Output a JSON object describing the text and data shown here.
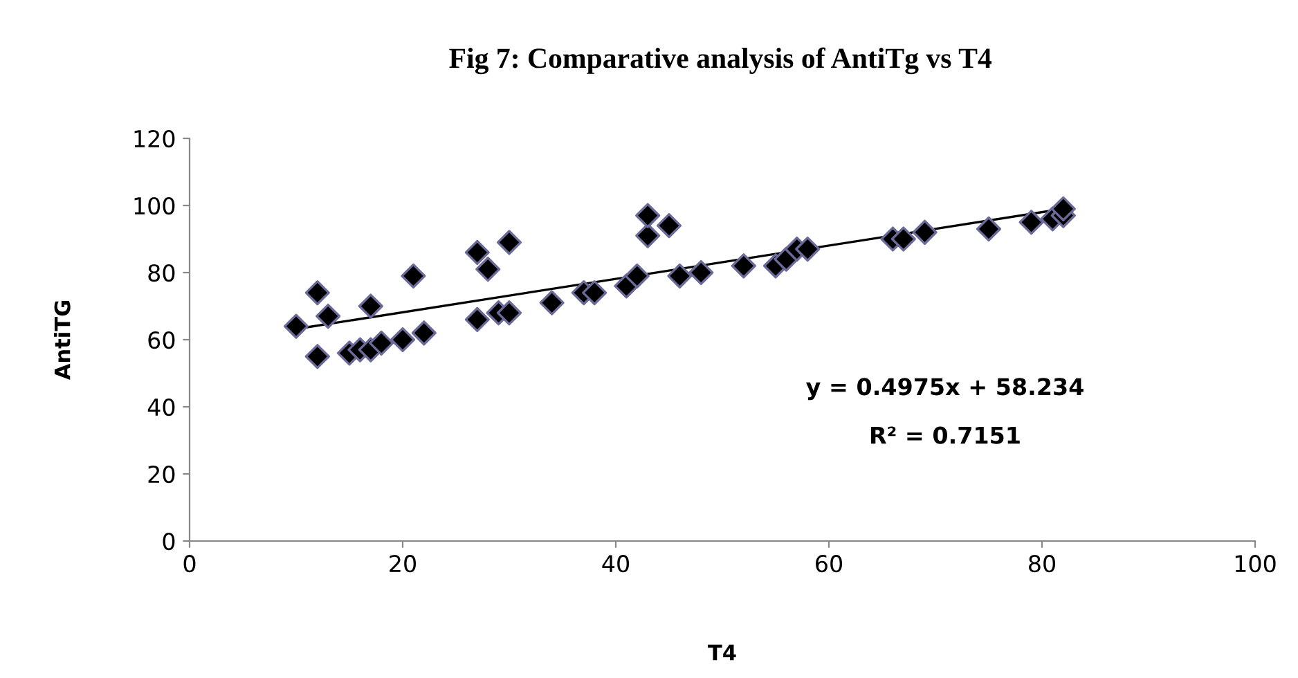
{
  "chart_data": {
    "type": "scatter",
    "title": "Fig 7: Comparative analysis of AntiTg vs T4",
    "xlabel": "T4",
    "ylabel": "AntiTG",
    "xlim": [
      0,
      100
    ],
    "xticks": [
      0,
      20,
      40,
      60,
      80,
      100
    ],
    "ylim": [
      0,
      120
    ],
    "yticks": [
      0,
      20,
      40,
      60,
      80,
      100,
      120
    ],
    "grid": false,
    "legend": false,
    "series": [
      {
        "marker": "diamond",
        "color": "#000000",
        "x": [
          10,
          12,
          12,
          13,
          15,
          16,
          17,
          17,
          18,
          20,
          21,
          22,
          27,
          27,
          28,
          29,
          30,
          30,
          34,
          37,
          38,
          41,
          42,
          43,
          43,
          45,
          46,
          48,
          52,
          55,
          56,
          57,
          58,
          66,
          67,
          69,
          75,
          79,
          81,
          82,
          82
        ],
        "values": [
          64,
          74,
          55,
          67,
          56,
          57,
          57,
          70,
          59,
          60,
          79,
          62,
          86,
          66,
          81,
          68,
          89,
          68,
          71,
          74,
          74,
          76,
          79,
          91,
          97,
          94,
          79,
          80,
          82,
          82,
          84,
          87,
          87,
          90,
          90,
          92,
          93,
          95,
          96,
          97,
          99
        ]
      },
      {
        "type": "line",
        "color": "#000000",
        "x": [
          10,
          82
        ],
        "values": [
          63.2,
          99.0
        ]
      }
    ],
    "annotations": [
      "y = 0.4975x + 58.234",
      "R² = 0.7151"
    ]
  }
}
